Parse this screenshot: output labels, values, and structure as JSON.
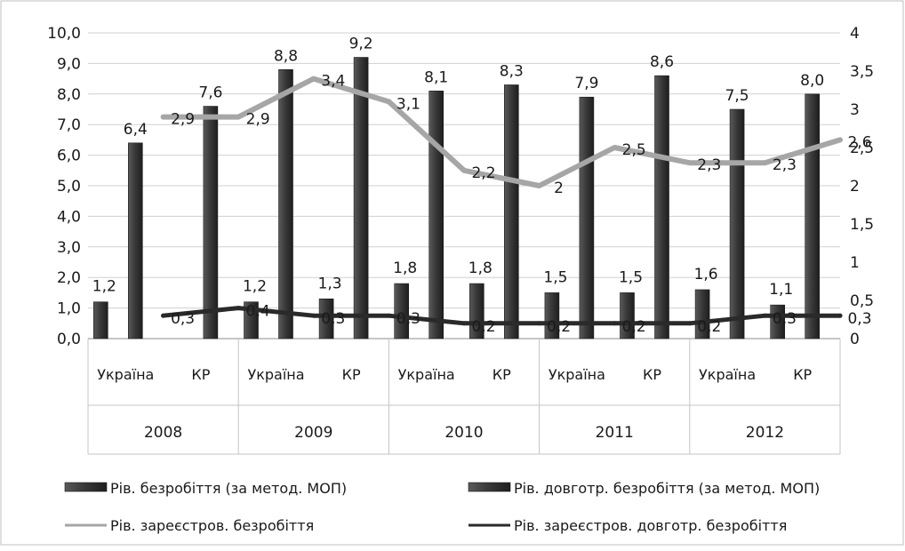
{
  "chart_data": {
    "type": "bar",
    "years": [
      "2008",
      "2009",
      "2010",
      "2011",
      "2012"
    ],
    "categories": [
      "Україна",
      "КР",
      "Україна",
      "КР",
      "Україна",
      "КР",
      "Україна",
      "КР",
      "Україна",
      "КР"
    ],
    "y_left": {
      "min": 0,
      "max": 10,
      "step": 1,
      "ticks": [
        "0,0",
        "1,0",
        "2,0",
        "3,0",
        "4,0",
        "5,0",
        "6,0",
        "7,0",
        "8,0",
        "9,0",
        "10,0"
      ]
    },
    "y_right": {
      "min": 0,
      "max": 4,
      "step": 0.5,
      "ticks": [
        "0",
        "0,5",
        "1",
        "1,5",
        "2",
        "2,5",
        "3",
        "3,5",
        "4"
      ]
    },
    "series": [
      {
        "name": "Рів. безробіття (за метод. МОП)",
        "kind": "bar",
        "axis": "left",
        "color": "#3a3a3a",
        "values": [
          6.4,
          7.6,
          8.8,
          9.2,
          8.1,
          8.3,
          7.9,
          8.6,
          7.5,
          8.0
        ],
        "labels": [
          "6,4",
          "7,6",
          "8,8",
          "9,2",
          "8,1",
          "8,3",
          "7,9",
          "8,6",
          "7,5",
          "8,0"
        ]
      },
      {
        "name": "Рів. довготр. безробіття (за метод. МОП)",
        "kind": "bar",
        "axis": "left",
        "color": "#2e2e2e",
        "values": [
          1.2,
          0.0,
          1.2,
          1.3,
          1.8,
          1.8,
          1.5,
          1.5,
          1.6,
          1.1
        ],
        "labels": [
          "1,2",
          "",
          "1,2",
          "1,3",
          "1,8",
          "1,8",
          "1,5",
          "1,5",
          "1,6",
          "1,1"
        ]
      },
      {
        "name": "Рів. зареєстров. безробіття",
        "kind": "line",
        "axis": "right",
        "color": "#a6a6a6",
        "values": [
          2.9,
          2.9,
          3.4,
          3.1,
          2.2,
          2.0,
          2.5,
          2.3,
          2.3,
          2.6
        ],
        "labels": [
          "2,9",
          "2,9",
          "3,4",
          "3,1",
          "2,2",
          "2",
          "2,5",
          "2,3",
          "2,3",
          "2,6"
        ]
      },
      {
        "name": "Рів. зареєстров. довготр. безробіття",
        "kind": "line",
        "axis": "right",
        "color": "#2a2a2a",
        "values": [
          0.3,
          0.4,
          0.3,
          0.3,
          0.2,
          0.2,
          0.2,
          0.2,
          0.3,
          0.3
        ],
        "labels": [
          "0,3",
          "0,4",
          "0,3",
          "0,3",
          "0,2",
          "0,2",
          "0,2",
          "0,2",
          "0,3",
          "0,3"
        ]
      }
    ],
    "legend_position": "bottom",
    "grid": true
  }
}
